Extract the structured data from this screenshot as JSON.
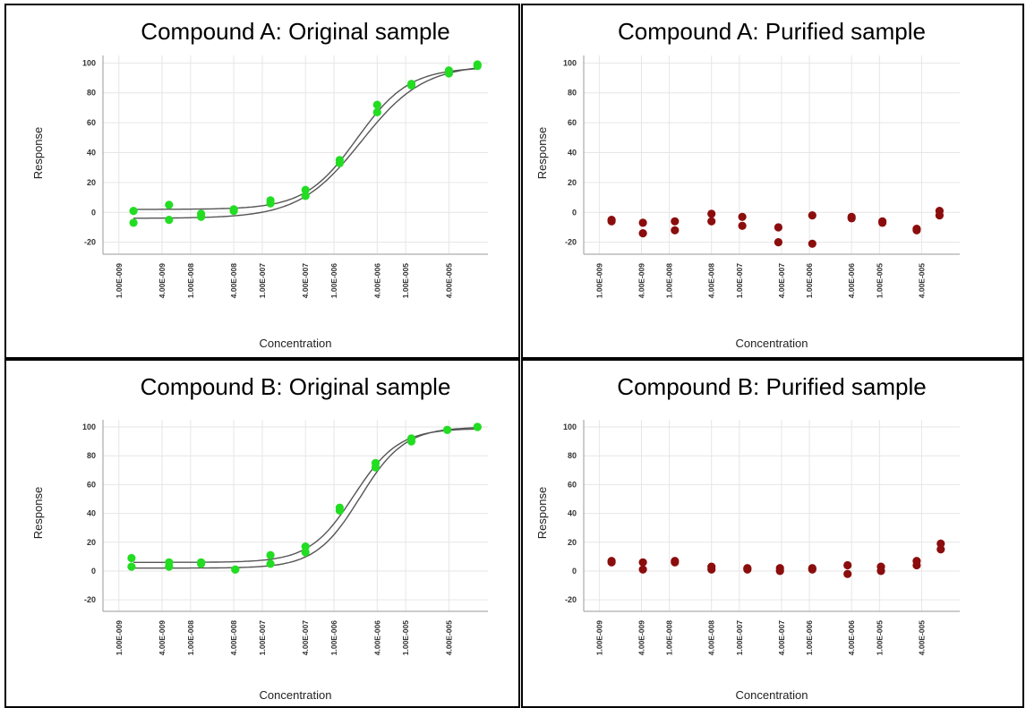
{
  "chart_data": [
    {
      "type": "scatter",
      "title": "Compound A:  Original sample",
      "xlabel": "Concentration",
      "ylabel": "Response",
      "x_scale": "log",
      "xlim": [
        6e-10,
        0.00014
      ],
      "ylim": [
        -28,
        105
      ],
      "yticks": [
        100,
        80,
        60,
        40,
        20,
        0,
        -20
      ],
      "xtick_labels": [
        {
          "label": "1.00E-009",
          "value": 1e-09
        },
        {
          "label": "4.00E-009",
          "value": 4e-09
        },
        {
          "label": "1.00E-008",
          "value": 1e-08
        },
        {
          "label": "4.00E-008",
          "value": 4e-08
        },
        {
          "label": "1.00E-007",
          "value": 1e-07
        },
        {
          "label": "4.00E-007",
          "value": 4e-07
        },
        {
          "label": "1.00E-006",
          "value": 1e-06
        },
        {
          "label": "4.00E-006",
          "value": 4e-06
        },
        {
          "label": "1.00E-005",
          "value": 1e-05
        },
        {
          "label": "4.00E-005",
          "value": 4e-05
        }
      ],
      "grid": true,
      "marker_color": "#22dd22",
      "curve_color": "#555555",
      "series": [
        {
          "x": [
            1.6e-09,
            5e-09,
            1.4e-08,
            4e-08,
            1.3e-07,
            4e-07,
            1.2e-06,
            4e-06,
            1.2e-05,
            4e-05,
            0.0001
          ],
          "y": [
            1,
            5,
            -1,
            2,
            8,
            15,
            35,
            72,
            86,
            95,
            99
          ]
        },
        {
          "x": [
            1.6e-09,
            5e-09,
            1.4e-08,
            4e-08,
            1.3e-07,
            4e-07,
            1.2e-06,
            4e-06,
            1.2e-05,
            4e-05,
            0.0001
          ],
          "y": [
            -7,
            -5,
            -3,
            1,
            6,
            11,
            33,
            67,
            85,
            93,
            98
          ]
        }
      ],
      "fits": [
        {
          "bottom": 2,
          "top": 97,
          "ec50": 2.1e-06,
          "hill": 1.2
        },
        {
          "bottom": -4,
          "top": 99,
          "ec50": 2.4e-06,
          "hill": 1.0
        }
      ]
    },
    {
      "type": "scatter",
      "title": "Compound A:  Purified sample",
      "xlabel": "Concentration",
      "ylabel": "Response",
      "x_scale": "log",
      "xlim": [
        6e-10,
        0.00014
      ],
      "ylim": [
        -28,
        105
      ],
      "yticks": [
        100,
        80,
        60,
        40,
        20,
        0,
        -20
      ],
      "xtick_labels": [
        {
          "label": "1.00E-009",
          "value": 1e-09
        },
        {
          "label": "4.00E-009",
          "value": 4e-09
        },
        {
          "label": "1.00E-008",
          "value": 1e-08
        },
        {
          "label": "4.00E-008",
          "value": 4e-08
        },
        {
          "label": "1.00E-007",
          "value": 1e-07
        },
        {
          "label": "4.00E-007",
          "value": 4e-07
        },
        {
          "label": "1.00E-006",
          "value": 1e-06
        },
        {
          "label": "4.00E-006",
          "value": 4e-06
        },
        {
          "label": "1.00E-005",
          "value": 1e-05
        },
        {
          "label": "4.00E-005",
          "value": 4e-05
        }
      ],
      "grid": true,
      "marker_color": "#8b0d0d",
      "series": [
        {
          "x": [
            1.5e-09,
            4.2e-09,
            1.2e-08,
            4e-08,
            1.1e-07,
            3.6e-07,
            1.1e-06,
            4e-06,
            1.1e-05,
            3.4e-05,
            7.2e-05
          ],
          "y": [
            -5,
            -7,
            -6,
            -1,
            -3,
            -10,
            -2,
            -3,
            -6,
            -11,
            1
          ]
        },
        {
          "x": [
            1.5e-09,
            4.2e-09,
            1.2e-08,
            4e-08,
            1.1e-07,
            3.6e-07,
            1.1e-06,
            4e-06,
            1.1e-05,
            3.4e-05,
            7.2e-05
          ],
          "y": [
            -6,
            -14,
            -12,
            -6,
            -9,
            -20,
            -21,
            -4,
            -7,
            -12,
            -2
          ]
        }
      ]
    },
    {
      "type": "scatter",
      "title": "Compound B:  Original sample",
      "xlabel": "Concentration",
      "ylabel": "Response",
      "x_scale": "log",
      "xlim": [
        6e-10,
        0.00014
      ],
      "ylim": [
        -28,
        105
      ],
      "yticks": [
        100,
        80,
        60,
        40,
        20,
        0,
        -20
      ],
      "xtick_labels": [
        {
          "label": "1.00E-009",
          "value": 1e-09
        },
        {
          "label": "4.00E-009",
          "value": 4e-09
        },
        {
          "label": "1.00E-008",
          "value": 1e-08
        },
        {
          "label": "4.00E-008",
          "value": 4e-08
        },
        {
          "label": "1.00E-007",
          "value": 1e-07
        },
        {
          "label": "4.00E-007",
          "value": 4e-07
        },
        {
          "label": "1.00E-006",
          "value": 1e-06
        },
        {
          "label": "4.00E-006",
          "value": 4e-06
        },
        {
          "label": "1.00E-005",
          "value": 1e-05
        },
        {
          "label": "4.00E-005",
          "value": 4e-05
        }
      ],
      "grid": true,
      "marker_color": "#22dd22",
      "curve_color": "#555555",
      "series": [
        {
          "x": [
            1.5e-09,
            5e-09,
            1.4e-08,
            4.2e-08,
            1.3e-07,
            4e-07,
            1.2e-06,
            3.8e-06,
            1.2e-05,
            3.8e-05,
            0.0001
          ],
          "y": [
            9,
            6,
            6,
            1,
            11,
            17,
            44,
            75,
            92,
            98,
            100
          ]
        },
        {
          "x": [
            1.5e-09,
            5e-09,
            1.4e-08,
            4.2e-08,
            1.3e-07,
            4e-07,
            1.2e-06,
            3.8e-06,
            1.2e-05,
            3.8e-05,
            0.0001
          ],
          "y": [
            3,
            3,
            5,
            1,
            5,
            13,
            42,
            72,
            90,
            98,
            100
          ]
        }
      ],
      "fits": [
        {
          "bottom": 6,
          "top": 99,
          "ec50": 1.9e-06,
          "hill": 1.4
        },
        {
          "bottom": 2,
          "top": 100,
          "ec50": 2.3e-06,
          "hill": 1.4
        }
      ]
    },
    {
      "type": "scatter",
      "title": "Compound B:  Purified sample",
      "xlabel": "Concentration",
      "ylabel": "Response",
      "x_scale": "log",
      "xlim": [
        6e-10,
        0.00014
      ],
      "ylim": [
        -28,
        105
      ],
      "yticks": [
        100,
        80,
        60,
        40,
        20,
        0,
        -20
      ],
      "xtick_labels": [
        {
          "label": "1.00E-009",
          "value": 1e-09
        },
        {
          "label": "4.00E-009",
          "value": 4e-09
        },
        {
          "label": "1.00E-008",
          "value": 1e-08
        },
        {
          "label": "4.00E-008",
          "value": 4e-08
        },
        {
          "label": "1.00E-007",
          "value": 1e-07
        },
        {
          "label": "4.00E-007",
          "value": 4e-07
        },
        {
          "label": "1.00E-006",
          "value": 1e-06
        },
        {
          "label": "4.00E-006",
          "value": 4e-06
        },
        {
          "label": "1.00E-005",
          "value": 1e-05
        },
        {
          "label": "4.00E-005",
          "value": 4e-05
        }
      ],
      "grid": true,
      "marker_color": "#8b0d0d",
      "series": [
        {
          "x": [
            1.5e-09,
            4.2e-09,
            1.2e-08,
            4e-08,
            1.3e-07,
            3.8e-07,
            1.1e-06,
            3.5e-06,
            1.05e-05,
            3.4e-05,
            7.5e-05
          ],
          "y": [
            7,
            6,
            7,
            3,
            2,
            2,
            2,
            4,
            3,
            7,
            19
          ]
        },
        {
          "x": [
            1.5e-09,
            4.2e-09,
            1.2e-08,
            4e-08,
            1.3e-07,
            3.8e-07,
            1.1e-06,
            3.5e-06,
            1.05e-05,
            3.4e-05,
            7.5e-05
          ],
          "y": [
            6,
            1,
            6,
            1,
            1,
            0,
            1,
            -2,
            0,
            4,
            15
          ]
        }
      ]
    }
  ]
}
